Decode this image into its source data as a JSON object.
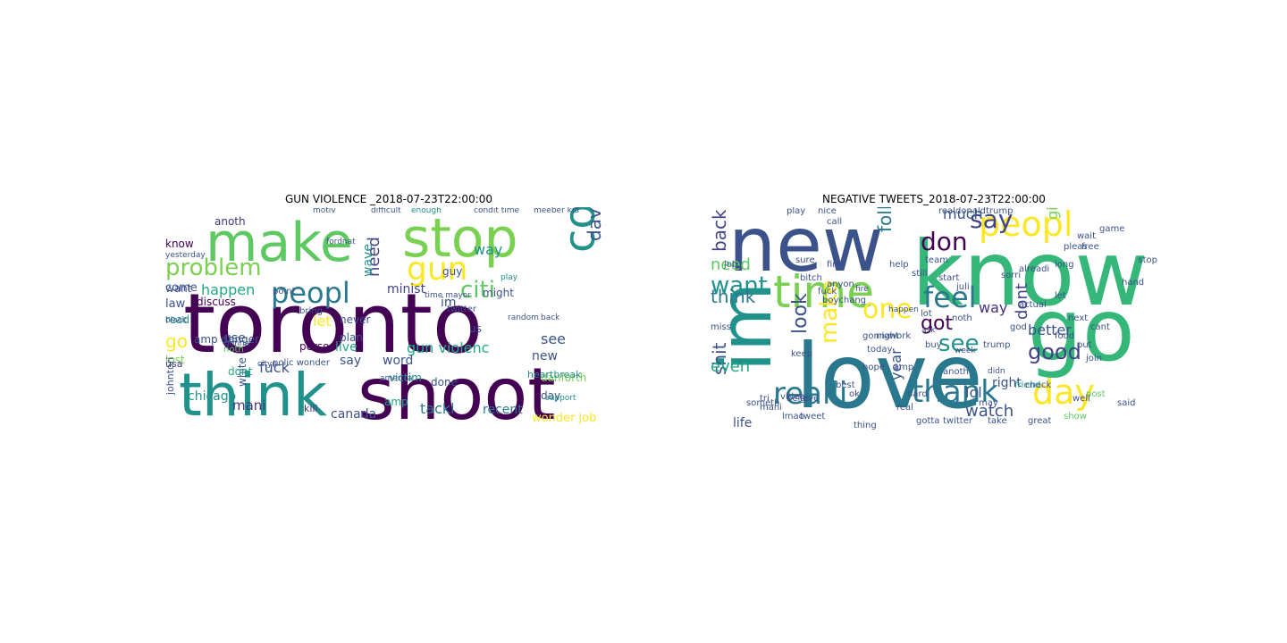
{
  "figure": {
    "left": {
      "title": "GUN VIOLENCE _2018-07-23T22:00:00",
      "words": [
        "toronto",
        "shoot",
        "think",
        "make",
        "stop",
        "control",
        "gun",
        "peopl",
        "problem",
        "citi",
        "davidhogg111",
        "need",
        "happen",
        "law",
        "come",
        "know",
        "want",
        "go",
        "read",
        "lost",
        "use",
        "usa",
        "fuck",
        "chicago",
        "mani",
        "kill",
        "canada",
        "johntori",
        "gun violenc",
        "tackl",
        "recent",
        "wonder job",
        "danforth",
        "day",
        "new",
        "see",
        "way",
        "im",
        "minist",
        "live",
        "word",
        "victim",
        "white",
        "let",
        "person",
        "say",
        "plan",
        "discuss",
        "amp danger",
        "anoth",
        "wave",
        "noth",
        "dont",
        "polic wonder",
        "america",
        "time mayor",
        "never",
        "done",
        "amp",
        "condit time",
        "us",
        "guy",
        "might",
        "twitter",
        "heartbreak",
        "support",
        "bring",
        "point",
        "black",
        "yesterday",
        "random",
        "back",
        "play",
        "difficult",
        "meeber kid",
        "enough",
        "motiv",
        "fordnat",
        "gonna",
        "cityn"
      ]
    },
    "right": {
      "title": "NEGATIVE TWEETS_2018-07-23T22:00:00",
      "words": [
        "love",
        "know",
        "new",
        "go",
        "im",
        "time",
        "peopl",
        "day",
        "realli",
        "thank",
        "feel",
        "don",
        "say",
        "want",
        "one",
        "make",
        "see",
        "look",
        "back",
        "think",
        "need",
        "shit",
        "even",
        "got",
        "follow",
        "watch",
        "good",
        "dont",
        "way",
        "lol",
        "year",
        "right",
        "much",
        "girl",
        "better",
        "life",
        "video",
        "tweet",
        "twitter",
        "show",
        "check",
        "put",
        "let",
        "long",
        "friend",
        "real",
        "buy",
        "hard",
        "night",
        "post",
        "said",
        "game",
        "free",
        "wait",
        "pleas",
        "alreadi",
        "god",
        "sorri",
        "lot",
        "still",
        "start",
        "work",
        "team",
        "actual",
        "help",
        "stop",
        "hand",
        "nice",
        "anyon",
        "first",
        "fuck",
        "ok",
        "gonna",
        "mani",
        "today",
        "keep",
        "job",
        "bitch",
        "miss",
        "best",
        "sure",
        "play",
        "call",
        "boychang",
        "realdonaldtrump",
        "juli",
        "believ",
        "someth",
        "tri",
        "lmao",
        "give",
        "hope",
        "amp",
        "trump",
        "anoth",
        "thing",
        "take",
        "gotta",
        "great",
        "join",
        "well",
        "cant",
        "next",
        "food",
        "noth",
        "may",
        "fire",
        "happen",
        "ask",
        "week",
        "didn"
      ]
    }
  }
}
